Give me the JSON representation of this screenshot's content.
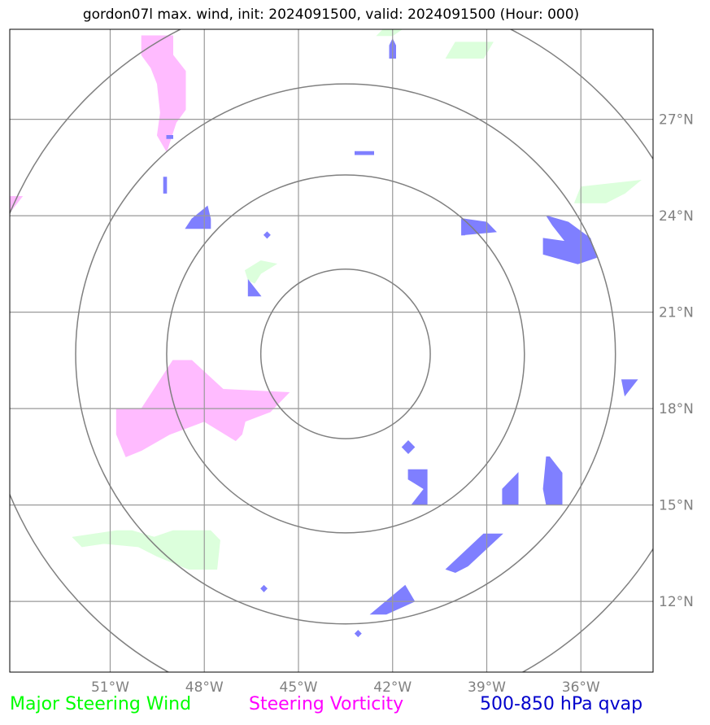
{
  "title": "gordon07l max. wind, init: 2024091500, valid: 2024091500 (Hour: 000)",
  "map": {
    "lon_range": [
      -54.2,
      -33.7
    ],
    "lat_range": [
      9.8,
      29.8
    ],
    "lon_ticks": [
      {
        "value": -51,
        "label": "51°W"
      },
      {
        "value": -48,
        "label": "48°W"
      },
      {
        "value": -45,
        "label": "45°W"
      },
      {
        "value": -42,
        "label": "42°W"
      },
      {
        "value": -39,
        "label": "39°W"
      },
      {
        "value": -36,
        "label": "36°W"
      }
    ],
    "lat_ticks": [
      {
        "value": 12,
        "label": "12°N"
      },
      {
        "value": 15,
        "label": "15°N"
      },
      {
        "value": 18,
        "label": "18°N"
      },
      {
        "value": 21,
        "label": "21°N"
      },
      {
        "value": 24,
        "label": "24°N"
      },
      {
        "value": 27,
        "label": "27°N"
      }
    ],
    "center": {
      "lon": -43.5,
      "lat": 19.7
    },
    "range_rings_deg": [
      2.7,
      5.7,
      8.6,
      11.6
    ],
    "grid": true
  },
  "layers": {
    "steering_wind_color": "#dcffdc",
    "vorticity_color": "#ffbbff",
    "qvap_color": "#7f7fff",
    "steering_wind": [
      [
        [
          -46.7,
          22.3
        ],
        [
          -46.2,
          22.6
        ],
        [
          -45.7,
          22.5
        ],
        [
          -46.2,
          22.2
        ],
        [
          -46.4,
          21.9
        ],
        [
          -46.6,
          22.0
        ]
      ],
      [
        [
          -40.3,
          28.9
        ],
        [
          -40.0,
          29.4
        ],
        [
          -38.8,
          29.4
        ],
        [
          -39.1,
          28.9
        ]
      ],
      [
        [
          -36.2,
          24.4
        ],
        [
          -36.0,
          24.9
        ],
        [
          -34.1,
          25.1
        ],
        [
          -34.6,
          24.7
        ],
        [
          -35.2,
          24.4
        ]
      ],
      [
        [
          -52.2,
          14.0
        ],
        [
          -50.8,
          14.2
        ],
        [
          -50.3,
          14.2
        ],
        [
          -49.6,
          14.0
        ],
        [
          -49.0,
          14.2
        ],
        [
          -47.8,
          14.2
        ],
        [
          -47.5,
          13.9
        ],
        [
          -47.6,
          13.0
        ],
        [
          -48.5,
          13.0
        ],
        [
          -49.5,
          13.4
        ],
        [
          -50.1,
          13.7
        ],
        [
          -51.2,
          13.8
        ],
        [
          -51.9,
          13.7
        ]
      ],
      [
        [
          -42.5,
          29.6
        ],
        [
          -42.3,
          29.8
        ],
        [
          -41.7,
          29.8
        ],
        [
          -42.0,
          29.6
        ]
      ]
    ],
    "vorticity": [
      [
        [
          -50.0,
          29.6
        ],
        [
          -49.0,
          29.6
        ],
        [
          -49.0,
          29.0
        ],
        [
          -48.6,
          28.5
        ],
        [
          -48.6,
          27.3
        ],
        [
          -48.9,
          26.9
        ],
        [
          -49.2,
          26.0
        ],
        [
          -49.5,
          26.5
        ],
        [
          -49.4,
          27.2
        ],
        [
          -49.5,
          28.1
        ],
        [
          -49.7,
          28.6
        ],
        [
          -50.0,
          29.0
        ]
      ],
      [
        [
          -50.0,
          18.0
        ],
        [
          -49.0,
          19.5
        ],
        [
          -48.4,
          19.5
        ],
        [
          -47.4,
          18.6
        ],
        [
          -45.3,
          18.5
        ],
        [
          -45.9,
          17.9
        ],
        [
          -46.7,
          17.6
        ],
        [
          -46.8,
          17.2
        ],
        [
          -47.0,
          17.0
        ],
        [
          -47.5,
          17.3
        ],
        [
          -48.0,
          17.6
        ],
        [
          -49.1,
          17.2
        ],
        [
          -50.0,
          16.7
        ],
        [
          -50.5,
          16.5
        ],
        [
          -50.8,
          17.2
        ],
        [
          -50.8,
          18.0
        ]
      ],
      [
        [
          -54.2,
          24.6
        ],
        [
          -53.8,
          24.6
        ],
        [
          -54.2,
          24.1
        ]
      ]
    ],
    "qvap": [
      [
        [
          -49.2,
          26.5
        ],
        [
          -49.0,
          26.5
        ],
        [
          -49.0,
          26.4
        ],
        [
          -49.2,
          26.4
        ]
      ],
      [
        [
          -48.4,
          23.9
        ],
        [
          -47.9,
          24.3
        ],
        [
          -47.8,
          23.9
        ],
        [
          -47.8,
          23.6
        ],
        [
          -48.6,
          23.6
        ]
      ],
      [
        [
          -42.1,
          29.3
        ],
        [
          -42.0,
          29.5
        ],
        [
          -41.9,
          29.3
        ],
        [
          -41.9,
          28.9
        ],
        [
          -42.1,
          28.9
        ]
      ],
      [
        [
          -39.7,
          23.9
        ],
        [
          -39.0,
          23.8
        ],
        [
          -38.7,
          23.5
        ],
        [
          -39.8,
          23.4
        ],
        [
          -39.8,
          23.9
        ]
      ],
      [
        [
          -37.1,
          24.0
        ],
        [
          -36.4,
          23.8
        ],
        [
          -35.7,
          23.3
        ],
        [
          -35.5,
          22.7
        ],
        [
          -36.1,
          22.5
        ],
        [
          -37.2,
          22.8
        ],
        [
          -37.2,
          23.3
        ],
        [
          -36.5,
          23.2
        ],
        [
          -36.9,
          23.7
        ]
      ],
      [
        [
          -46.6,
          22.0
        ],
        [
          -46.2,
          21.5
        ],
        [
          -46.6,
          21.5
        ]
      ],
      [
        [
          -34.7,
          18.9
        ],
        [
          -34.2,
          18.9
        ],
        [
          -34.6,
          18.4
        ]
      ],
      [
        [
          -41.7,
          16.8
        ],
        [
          -41.5,
          17.0
        ],
        [
          -41.3,
          16.8
        ],
        [
          -41.5,
          16.6
        ]
      ],
      [
        [
          -41.5,
          16.1
        ],
        [
          -40.9,
          16.1
        ],
        [
          -40.9,
          15.0
        ],
        [
          -41.4,
          15.0
        ],
        [
          -41.0,
          15.5
        ],
        [
          -41.5,
          15.8
        ]
      ],
      [
        [
          -37.1,
          16.5
        ],
        [
          -37.0,
          16.5
        ],
        [
          -36.6,
          16.0
        ],
        [
          -36.6,
          15.0
        ],
        [
          -37.1,
          15.0
        ],
        [
          -37.2,
          15.5
        ]
      ],
      [
        [
          -38.5,
          15.5
        ],
        [
          -38.0,
          16.0
        ],
        [
          -38.0,
          15.0
        ],
        [
          -38.5,
          15.0
        ]
      ],
      [
        [
          -39.1,
          14.1
        ],
        [
          -38.5,
          14.1
        ],
        [
          -39.6,
          13.1
        ],
        [
          -40.0,
          12.9
        ],
        [
          -40.3,
          13.0
        ]
      ],
      [
        [
          -41.6,
          12.5
        ],
        [
          -41.3,
          12.0
        ],
        [
          -42.2,
          11.6
        ],
        [
          -42.7,
          11.6
        ]
      ],
      [
        [
          -39.7,
          23.9
        ],
        [
          -39.8,
          23.9
        ],
        [
          -39.8,
          23.4
        ],
        [
          -39.7,
          23.4
        ]
      ],
      [
        [
          -43.2,
          26.0
        ],
        [
          -42.6,
          26.0
        ],
        [
          -42.6,
          25.9
        ],
        [
          -43.2,
          25.9
        ]
      ],
      [
        [
          -46.0,
          23.5
        ],
        [
          -45.9,
          23.4
        ],
        [
          -46.0,
          23.3
        ],
        [
          -46.1,
          23.4
        ]
      ],
      [
        [
          -49.3,
          25.2
        ],
        [
          -49.2,
          25.2
        ],
        [
          -49.2,
          24.7
        ],
        [
          -49.3,
          24.7
        ]
      ],
      [
        [
          -46.1,
          12.5
        ],
        [
          -46.0,
          12.4
        ],
        [
          -46.1,
          12.3
        ],
        [
          -46.2,
          12.4
        ]
      ],
      [
        [
          -43.1,
          11.1
        ],
        [
          -43.0,
          11.0
        ],
        [
          -43.1,
          10.9
        ],
        [
          -43.2,
          11.0
        ]
      ]
    ]
  },
  "legend": [
    {
      "label": "Major Steering Wind",
      "color": "#00ff00"
    },
    {
      "label": "Steering Vorticity",
      "color": "#ff00ff"
    },
    {
      "label": "500-850 hPa qvap",
      "color": "#0000cc"
    }
  ]
}
